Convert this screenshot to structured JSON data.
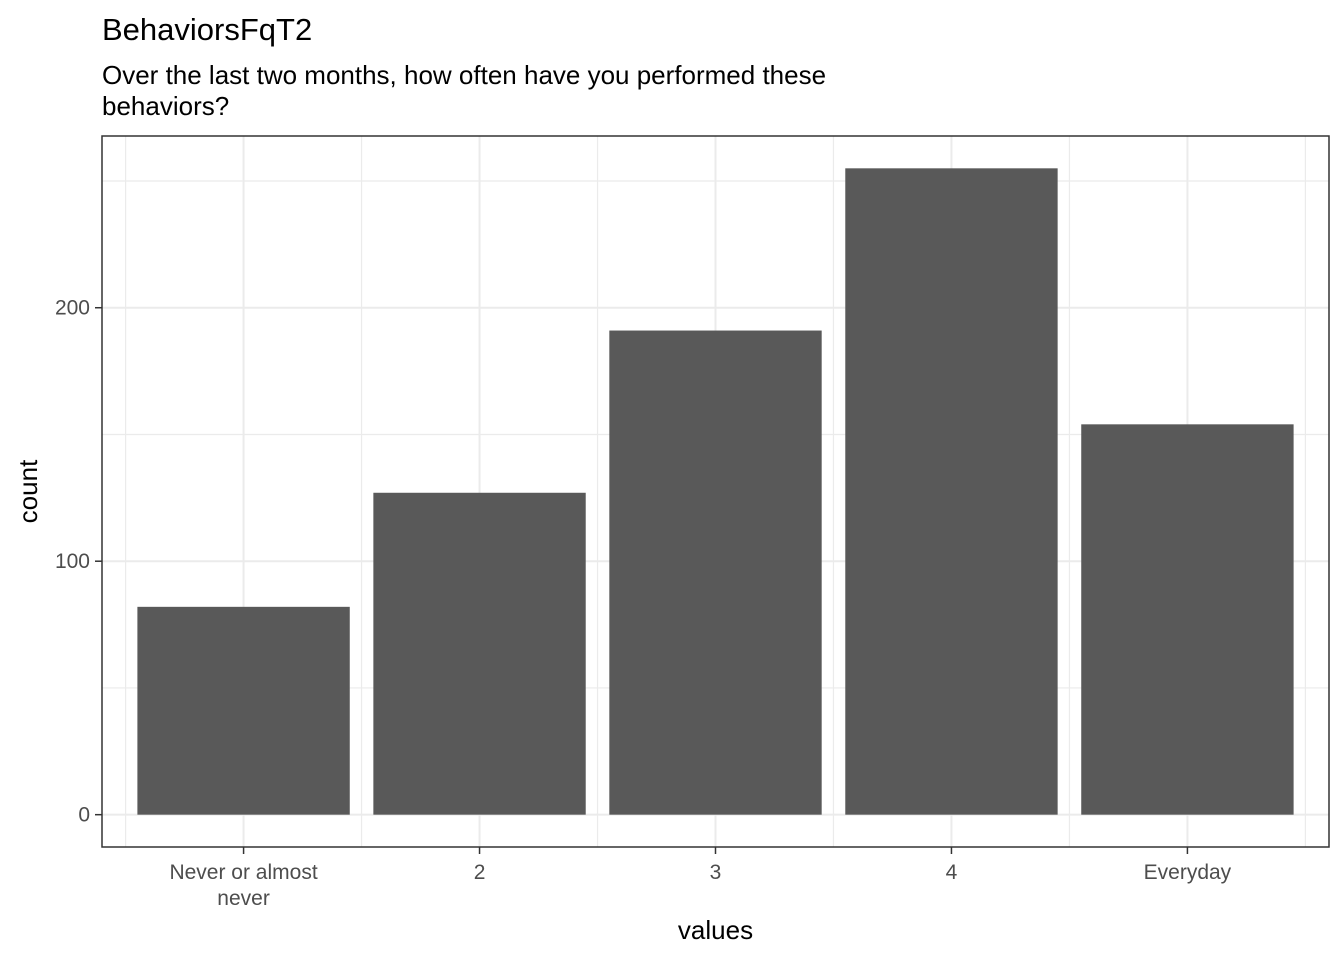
{
  "chart_data": {
    "type": "bar",
    "title": "BehaviorsFqT2",
    "subtitle_lines": [
      "Over the last two months, how often have you performed these",
      "behaviors?"
    ],
    "categories": [
      [
        "Never or almost",
        "never"
      ],
      [
        "2"
      ],
      [
        "3"
      ],
      [
        "4"
      ],
      [
        "Everyday"
      ]
    ],
    "values": [
      82,
      127,
      191,
      255,
      154
    ],
    "xlabel": "values",
    "ylabel": "count",
    "ylim": [
      -12.75,
      267.75
    ],
    "yticks": [
      0,
      100,
      200
    ],
    "grid": true,
    "bar_color": "#595959",
    "grid_color": "#ebebeb",
    "panel_border_color": "#333333"
  }
}
